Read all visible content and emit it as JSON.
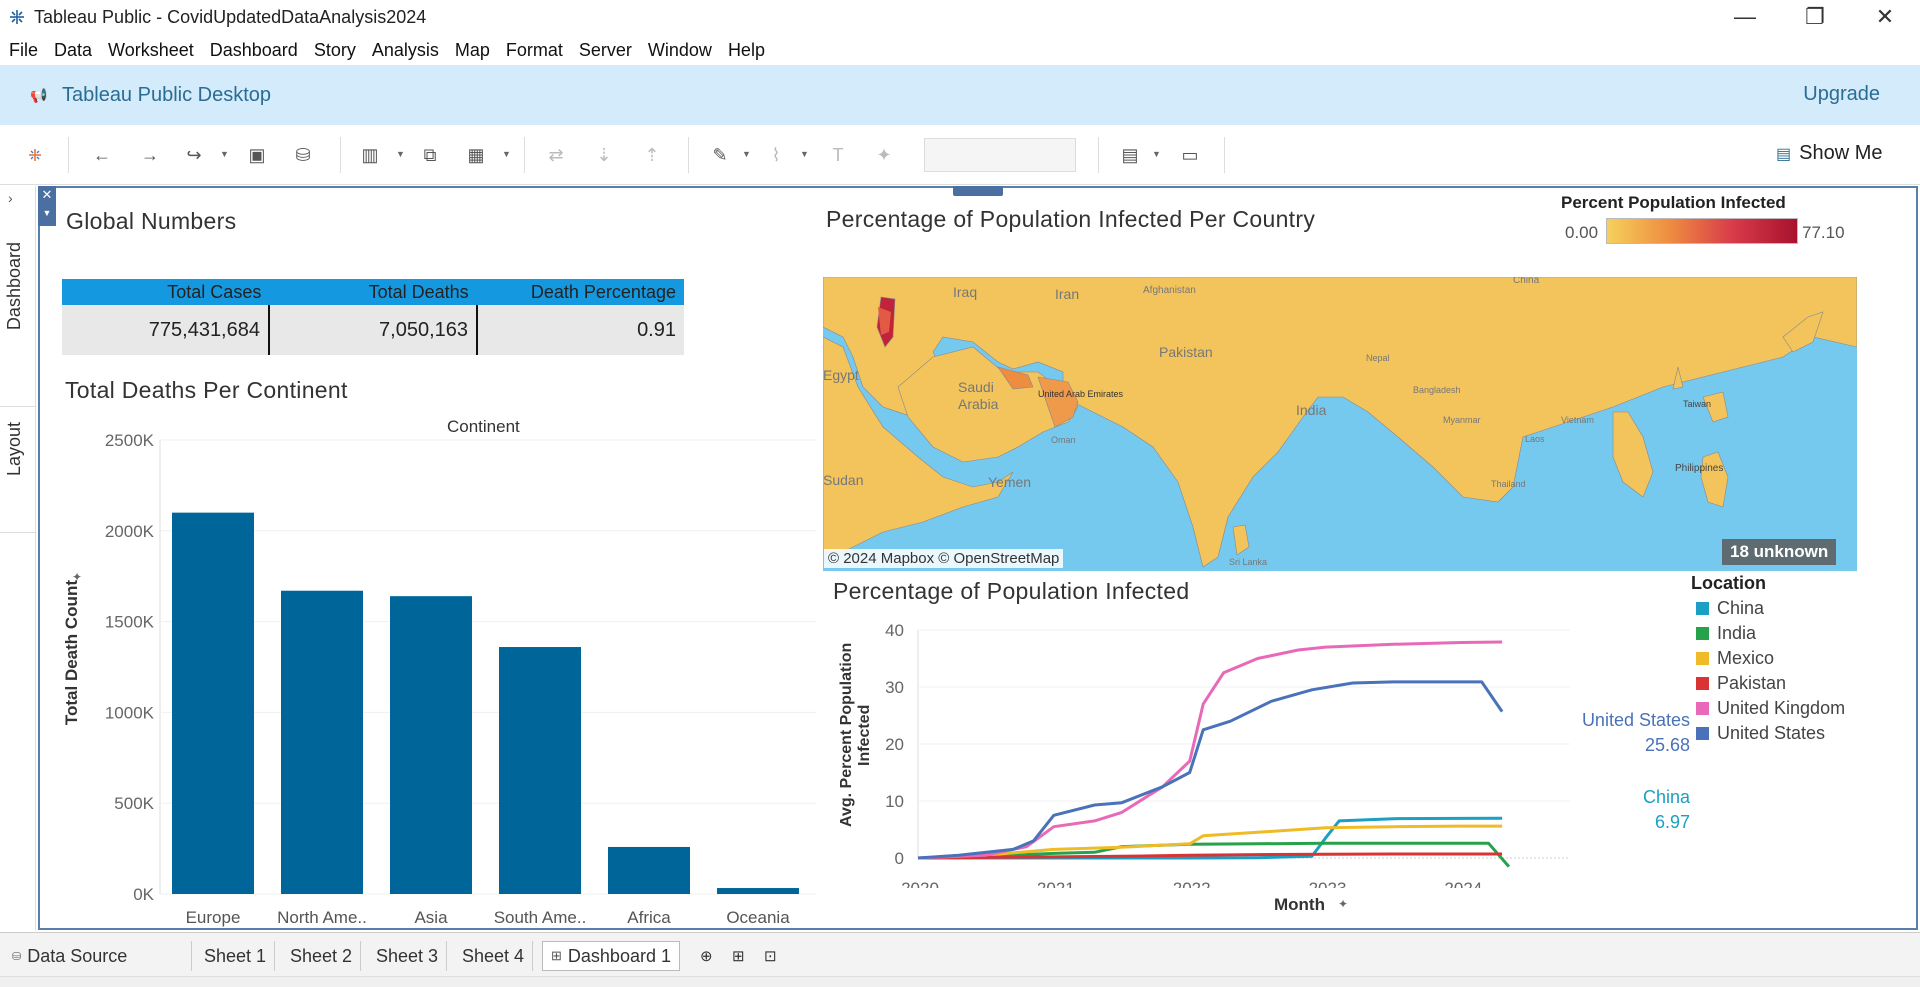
{
  "window": {
    "title": "Tableau Public - CovidUpdatedDataAnalysis2024",
    "minimize": "—",
    "maximize": "❐",
    "close": "✕"
  },
  "menu": [
    "File",
    "Data",
    "Worksheet",
    "Dashboard",
    "Story",
    "Analysis",
    "Map",
    "Format",
    "Server",
    "Window",
    "Help"
  ],
  "banner": {
    "title": "Tableau Public Desktop",
    "upgrade": "Upgrade"
  },
  "toolbar": {
    "show_me": "Show Me"
  },
  "side_tabs": {
    "dashboard": "Dashboard",
    "layout": "Layout"
  },
  "global_numbers": {
    "title": "Global Numbers",
    "headers": [
      "Total Cases",
      "Total Deaths",
      "Death Percentage"
    ],
    "values": [
      "775,431,684",
      "7,050,163",
      "0.91"
    ]
  },
  "deaths_chart": {
    "title": "Total Deaths Per Continent",
    "header": "Continent",
    "ylabel": "Total Death Count"
  },
  "map": {
    "title": "Percentage of Population Infected Per Country",
    "legend_title": "Percent Population Infected",
    "legend_min": "0.00",
    "legend_max": "77.10",
    "attribution": "© 2024 Mapbox © OpenStreetMap",
    "unknown": "18 unknown",
    "labels": [
      "Iraq",
      "Iran",
      "Afghanistan",
      "Saudi Arabia",
      "Pakistan",
      "India",
      "Yemen",
      "Egypt",
      "Sudan",
      "Nepal",
      "Myanmar",
      "Thailand",
      "Philippines",
      "China",
      "Taiwan",
      "Oman",
      "United Arab Emirates",
      "Sri Lanka",
      "Vietnam",
      "Laos",
      "Bangladesh"
    ]
  },
  "line_chart": {
    "title": "Percentage of Population Infected",
    "xlabel": "Month",
    "ylabel": "Avg. Percent Population Infected",
    "legend_title": "Location",
    "annotations": [
      {
        "name": "United States",
        "value": "25.68"
      },
      {
        "name": "China",
        "value": "6.97"
      }
    ]
  },
  "colors": {
    "bar": "#006699",
    "header_blue": "#1498e0",
    "water": "#76c9ee",
    "land": "#f3c45c",
    "China": "#1ba0c4",
    "India": "#27a24a",
    "Mexico": "#efbb27",
    "Pakistan": "#d93333",
    "United Kingdom": "#e869b8",
    "United States": "#4a72b8"
  },
  "sheet_tabs": [
    "Data Source",
    "Sheet 1",
    "Sheet 2",
    "Sheet 3",
    "Sheet 4",
    "Dashboard 1"
  ],
  "chart_data": [
    {
      "type": "bar",
      "title": "Total Deaths Per Continent",
      "xlabel": "Continent",
      "ylabel": "Total Death Count",
      "categories": [
        "Europe",
        "North Ame..",
        "Asia",
        "South Ame..",
        "Africa",
        "Oceania"
      ],
      "values": [
        2100000,
        1670000,
        1640000,
        1360000,
        259000,
        32900
      ],
      "ylim": [
        0,
        2500000
      ],
      "yticks": [
        "0K",
        "500K",
        "1000K",
        "1500K",
        "2000K",
        "2500K"
      ],
      "ytick_values": [
        0,
        500000,
        1000000,
        1500000,
        2000000,
        2500000
      ]
    },
    {
      "type": "line",
      "title": "Percentage of Population Infected",
      "xlabel": "Month",
      "ylabel": "Avg. Percent Population Infected",
      "ylim": [
        0,
        40
      ],
      "xlim": [
        2020.0,
        2024.8
      ],
      "yticks": [
        0,
        10,
        20,
        30,
        40
      ],
      "xticks": [
        "2020",
        "2021",
        "2022",
        "2023",
        "2024"
      ],
      "xtick_values": [
        2020,
        2021,
        2022,
        2023,
        2024
      ],
      "series": [
        {
          "name": "China",
          "x": [
            2020.0,
            2020.5,
            2021.0,
            2021.5,
            2022.0,
            2022.5,
            2022.9,
            2023.0,
            2023.1,
            2023.5,
            2024.0,
            2024.3
          ],
          "y": [
            0,
            0,
            0,
            0,
            0,
            0.05,
            0.3,
            3.5,
            6.5,
            6.9,
            6.95,
            6.97
          ]
        },
        {
          "name": "India",
          "x": [
            2020.0,
            2020.5,
            2021.0,
            2021.3,
            2021.5,
            2022.0,
            2022.5,
            2023.0,
            2023.5,
            2024.0,
            2024.2,
            2024.35
          ],
          "y": [
            0,
            0.3,
            0.8,
            1.0,
            2.0,
            2.4,
            2.5,
            2.6,
            2.6,
            2.6,
            2.6,
            -1.5
          ]
        },
        {
          "name": "Mexico",
          "x": [
            2020.0,
            2020.5,
            2021.0,
            2021.5,
            2022.0,
            2022.1,
            2022.5,
            2023.0,
            2023.5,
            2024.0,
            2024.3
          ],
          "y": [
            0,
            0.5,
            1.5,
            1.9,
            2.5,
            3.9,
            4.5,
            5.3,
            5.5,
            5.6,
            5.6
          ]
        },
        {
          "name": "Pakistan",
          "x": [
            2020.0,
            2020.5,
            2021.0,
            2021.5,
            2022.0,
            2022.5,
            2023.0,
            2023.5,
            2024.0,
            2024.3
          ],
          "y": [
            0,
            0.1,
            0.2,
            0.3,
            0.5,
            0.6,
            0.65,
            0.7,
            0.7,
            0.7
          ]
        },
        {
          "name": "United Kingdom",
          "x": [
            2020.0,
            2020.5,
            2020.8,
            2021.0,
            2021.3,
            2021.5,
            2021.8,
            2022.0,
            2022.1,
            2022.25,
            2022.5,
            2022.8,
            2023.0,
            2023.5,
            2024.0,
            2024.3
          ],
          "y": [
            0,
            0.5,
            2.0,
            5.5,
            6.5,
            8.0,
            12.5,
            17.0,
            27.0,
            32.5,
            35.0,
            36.5,
            37.0,
            37.5,
            37.8,
            37.9
          ]
        },
        {
          "name": "United States",
          "x": [
            2020.0,
            2020.3,
            2020.7,
            2020.85,
            2021.0,
            2021.3,
            2021.5,
            2021.8,
            2022.0,
            2022.1,
            2022.3,
            2022.6,
            2022.9,
            2023.2,
            2023.5,
            2024.0,
            2024.15,
            2024.3
          ],
          "y": [
            0,
            0.5,
            1.5,
            3.0,
            7.5,
            9.3,
            9.7,
            12.5,
            15.0,
            22.5,
            24.0,
            27.5,
            29.5,
            30.7,
            30.9,
            30.9,
            30.9,
            25.68
          ]
        }
      ]
    }
  ]
}
